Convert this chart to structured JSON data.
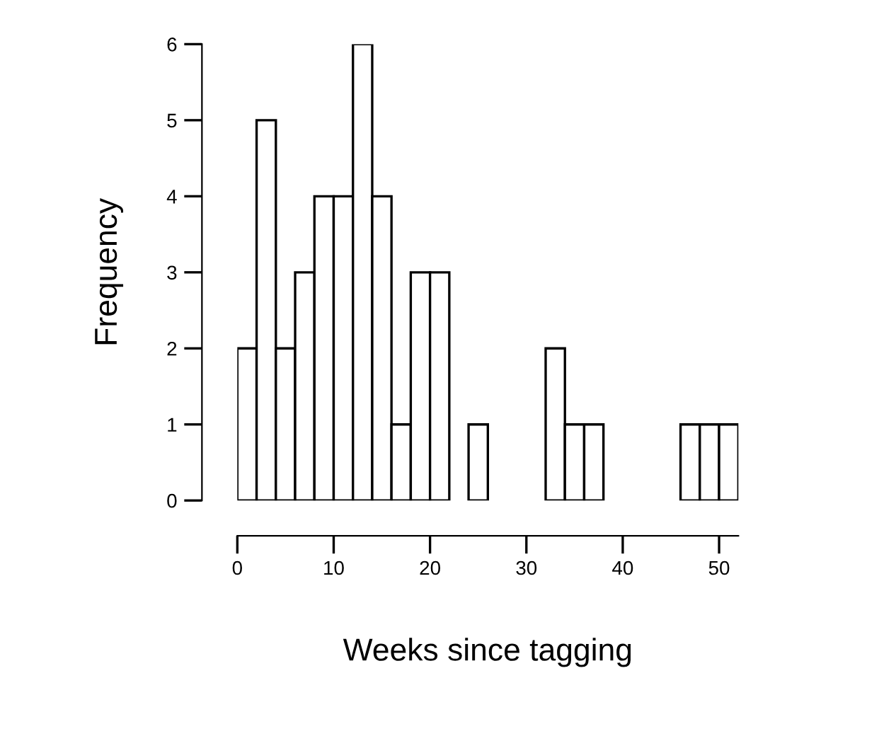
{
  "chart_data": {
    "type": "histogram",
    "xlabel": "Weeks since tagging",
    "ylabel": "Frequency",
    "bins": [
      0,
      2,
      4,
      6,
      8,
      10,
      12,
      14,
      16,
      18,
      20,
      22,
      24,
      26,
      28,
      30,
      32,
      34,
      36,
      38,
      40,
      42,
      44,
      46,
      48,
      50,
      52
    ],
    "values": [
      2,
      5,
      2,
      3,
      4,
      4,
      6,
      4,
      1,
      3,
      3,
      0,
      1,
      0,
      0,
      0,
      2,
      1,
      1,
      0,
      0,
      0,
      0,
      1,
      1,
      1
    ],
    "color": "#ffffff",
    "xlim": [
      0,
      52
    ],
    "xticks": [
      0,
      10,
      20,
      30,
      40,
      50
    ],
    "ylim": [
      0,
      6
    ],
    "yticks": [
      0,
      1,
      2,
      3,
      4,
      5,
      6
    ],
    "grid": false
  }
}
